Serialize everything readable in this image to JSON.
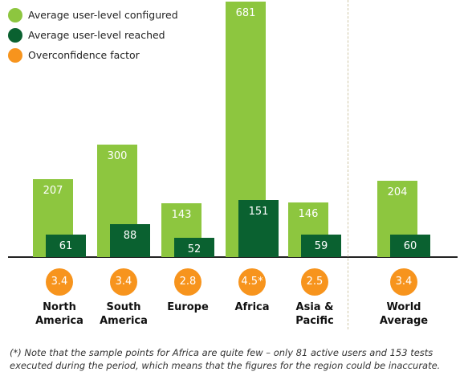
{
  "chart_data": {
    "type": "bar",
    "categories": [
      "North America",
      "South America",
      "Europe",
      "Africa",
      "Asia & Pacific",
      "World Average"
    ],
    "series": [
      {
        "name": "Average user-level configured",
        "color": "#8dc63f",
        "values": [
          207,
          300,
          143,
          681,
          146,
          204
        ]
      },
      {
        "name": "Average user-level reached",
        "color": "#0a6130",
        "values": [
          61,
          88,
          52,
          151,
          59,
          60
        ]
      },
      {
        "name": "Overconfidence factor",
        "color": "#f7941d",
        "values": [
          3.4,
          3.4,
          2.8,
          4.5,
          2.5,
          3.4
        ],
        "value_labels": [
          "3.4",
          "3.4",
          "2.8",
          "4.5*",
          "2.5",
          "3.4"
        ]
      }
    ],
    "footnote": "(*) Note that the sample points for Africa are quite few – only 81 active users and 153 tests executed during the period, which means that the figures for the region could be inaccurate."
  }
}
